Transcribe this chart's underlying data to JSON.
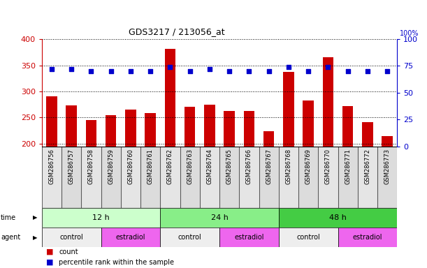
{
  "title": "GDS3217 / 213056_at",
  "samples": [
    "GSM286756",
    "GSM286757",
    "GSM286758",
    "GSM286759",
    "GSM286760",
    "GSM286761",
    "GSM286762",
    "GSM286763",
    "GSM286764",
    "GSM286765",
    "GSM286766",
    "GSM286767",
    "GSM286768",
    "GSM286769",
    "GSM286770",
    "GSM286771",
    "GSM286772",
    "GSM286773"
  ],
  "counts": [
    291,
    273,
    245,
    255,
    265,
    258,
    382,
    270,
    274,
    263,
    263,
    224,
    338,
    283,
    365,
    272,
    241,
    214
  ],
  "percentile_ranks": [
    72,
    72,
    70,
    70,
    70,
    70,
    74,
    70,
    72,
    70,
    70,
    70,
    74,
    70,
    74,
    70,
    70,
    70
  ],
  "ylim_left": [
    195,
    400
  ],
  "ylim_right": [
    0,
    100
  ],
  "yticks_left": [
    200,
    250,
    300,
    350,
    400
  ],
  "yticks_right": [
    0,
    25,
    50,
    75,
    100
  ],
  "bar_color": "#cc0000",
  "dot_color": "#0000cc",
  "bar_width": 0.55,
  "time_groups": [
    {
      "label": "12 h",
      "start": 0,
      "end": 6,
      "color": "#ccffcc"
    },
    {
      "label": "24 h",
      "start": 6,
      "end": 12,
      "color": "#88ee88"
    },
    {
      "label": "48 h",
      "start": 12,
      "end": 18,
      "color": "#44cc44"
    }
  ],
  "agent_groups": [
    {
      "label": "control",
      "start": 0,
      "end": 3,
      "color": "#eeeeee"
    },
    {
      "label": "estradiol",
      "start": 3,
      "end": 6,
      "color": "#ee66ee"
    },
    {
      "label": "control",
      "start": 6,
      "end": 9,
      "color": "#eeeeee"
    },
    {
      "label": "estradiol",
      "start": 9,
      "end": 12,
      "color": "#ee66ee"
    },
    {
      "label": "control",
      "start": 12,
      "end": 15,
      "color": "#eeeeee"
    },
    {
      "label": "estradiol",
      "start": 15,
      "end": 18,
      "color": "#ee66ee"
    }
  ],
  "left_axis_color": "#cc0000",
  "right_axis_color": "#0000cc",
  "label_bg_color": "#d8d8d8"
}
